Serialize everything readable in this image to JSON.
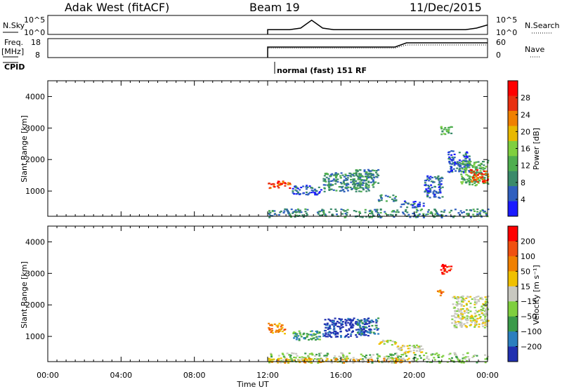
{
  "header": {
    "station": "Adak West (fitACF)",
    "beam": "Beam 19",
    "date": "11/Dec/2015"
  },
  "panels": {
    "nsky": {
      "left_label": "N.Sky",
      "right_label": "N.Search",
      "left_ticks": [
        "10^5",
        "10^0"
      ],
      "right_ticks": [
        "10^5",
        "10^0"
      ]
    },
    "freq": {
      "left_label_1": "Freq.",
      "left_label_2": "[MHz]",
      "right_label": "Nave",
      "left_ticks": [
        "18",
        "8"
      ],
      "right_ticks": [
        "60",
        "0"
      ]
    },
    "cpid": {
      "label": "CPID",
      "mode_text": "normal (fast) 151 RF"
    }
  },
  "colors": {
    "power": [
      "#1a1aff",
      "#2f5fbf",
      "#3a8a6a",
      "#4fae4f",
      "#7fcf3f",
      "#e8b800",
      "#f08000",
      "#e83010",
      "#ff0000"
    ],
    "velocity": [
      "#2030b0",
      "#2b7fbf",
      "#3a9a4a",
      "#7fcf3f",
      "#c8c8c0",
      "#f0c000",
      "#f08000",
      "#f05010",
      "#ff0000"
    ],
    "outline": "#000000"
  },
  "chart_data": [
    {
      "type": "heatmap",
      "title": "Power",
      "xlabel": "",
      "ylabel": "Slant Range [km]",
      "colorbar_label": "Power [dB]",
      "colorbar_ticks": [
        "28",
        "24",
        "20",
        "16",
        "12",
        "8",
        "4"
      ],
      "x_tick_labels": [
        "00:00",
        "04:00",
        "08:00",
        "12:00",
        "16:00",
        "20:00",
        "00:00"
      ],
      "y_tick_labels": [
        "4000",
        "3000",
        "2000",
        "1000"
      ],
      "xlim_hours": [
        0,
        24
      ],
      "ylim_km": [
        200,
        4500
      ],
      "patches": [
        {
          "t0": 12.0,
          "t1": 13.2,
          "r0": 1100,
          "r1": 1350,
          "level": 7
        },
        {
          "t0": 12.0,
          "t1": 24.0,
          "r0": 180,
          "r1": 450,
          "level": 2
        },
        {
          "t0": 13.3,
          "t1": 14.9,
          "r0": 900,
          "r1": 1200,
          "level": 1
        },
        {
          "t0": 15.0,
          "t1": 17.5,
          "r0": 1000,
          "r1": 1600,
          "level": 2
        },
        {
          "t0": 16.6,
          "t1": 18.0,
          "r0": 1100,
          "r1": 1700,
          "level": 2
        },
        {
          "t0": 18.0,
          "t1": 19.0,
          "r0": 700,
          "r1": 900,
          "level": 2
        },
        {
          "t0": 19.2,
          "t1": 20.5,
          "r0": 500,
          "r1": 700,
          "level": 1
        },
        {
          "t0": 21.4,
          "t1": 22.0,
          "r0": 2800,
          "r1": 3100,
          "level": 3
        },
        {
          "t0": 21.8,
          "t1": 23.0,
          "r0": 1600,
          "r1": 2300,
          "level": 1
        },
        {
          "t0": 22.5,
          "t1": 24.0,
          "r0": 1200,
          "r1": 2000,
          "level": 3
        },
        {
          "t0": 23.0,
          "t1": 24.0,
          "r0": 1300,
          "r1": 1700,
          "level": 7
        },
        {
          "t0": 20.5,
          "t1": 21.5,
          "r0": 800,
          "r1": 1500,
          "level": 1
        }
      ]
    },
    {
      "type": "heatmap",
      "title": "Velocity",
      "xlabel": "Time UT",
      "ylabel": "Slant Range [km]",
      "colorbar_label": "Velocity [m s⁻¹]",
      "colorbar_ticks": [
        "200",
        "100",
        "50",
        "15",
        "−15",
        "−50",
        "−100",
        "−200"
      ],
      "x_tick_labels": [
        "00:00",
        "04:00",
        "08:00",
        "12:00",
        "16:00",
        "20:00",
        "00:00"
      ],
      "y_tick_labels": [
        "4000",
        "3000",
        "2000",
        "1000"
      ],
      "xlim_hours": [
        0,
        24
      ],
      "ylim_km": [
        200,
        4500
      ],
      "patches": [
        {
          "t0": 12.0,
          "t1": 12.9,
          "r0": 1100,
          "r1": 1450,
          "level": 6
        },
        {
          "t0": 12.0,
          "t1": 24.0,
          "r0": 180,
          "r1": 500,
          "level": 3
        },
        {
          "t0": 12.0,
          "t1": 20.0,
          "r0": 180,
          "r1": 330,
          "level": 5
        },
        {
          "t0": 13.3,
          "t1": 15.0,
          "r0": 900,
          "r1": 1200,
          "level": 2
        },
        {
          "t0": 15.0,
          "t1": 17.5,
          "r0": 1000,
          "r1": 1600,
          "level": 0
        },
        {
          "t0": 16.8,
          "t1": 18.0,
          "r0": 1100,
          "r1": 1600,
          "level": 1
        },
        {
          "t0": 18.0,
          "t1": 19.0,
          "r0": 750,
          "r1": 900,
          "level": 4
        },
        {
          "t0": 19.0,
          "t1": 20.5,
          "r0": 500,
          "r1": 750,
          "level": 4
        },
        {
          "t0": 21.4,
          "t1": 22.0,
          "r0": 2950,
          "r1": 3300,
          "level": 8
        },
        {
          "t0": 22.0,
          "t1": 24.0,
          "r0": 1300,
          "r1": 2300,
          "level": 4
        },
        {
          "t0": 21.2,
          "t1": 21.6,
          "r0": 2300,
          "r1": 2500,
          "level": 6
        }
      ]
    },
    {
      "type": "line",
      "title": "N.Sky",
      "series": [
        {
          "values": [
            3,
            3,
            3,
            4,
            9,
            4,
            3,
            3,
            3,
            3,
            3,
            3,
            3,
            3,
            3,
            3,
            3,
            3,
            3,
            4,
            6
          ]
        }
      ],
      "x_start_hours": 12.0,
      "x_end_hours": 24.0
    },
    {
      "type": "line",
      "title": "Freq.",
      "series": [
        {
          "values": [
            10,
            10,
            10,
            10,
            10,
            10,
            10,
            10,
            10,
            10,
            10,
            10,
            14,
            14,
            14,
            14,
            14,
            14,
            14,
            14
          ]
        },
        {
          "values": [
            9,
            9,
            9,
            9,
            9,
            9,
            9,
            9,
            9,
            9,
            9,
            9,
            12,
            12,
            12,
            12,
            12,
            12,
            12,
            12
          ]
        }
      ],
      "x_start_hours": 12.0,
      "x_end_hours": 24.0
    }
  ]
}
